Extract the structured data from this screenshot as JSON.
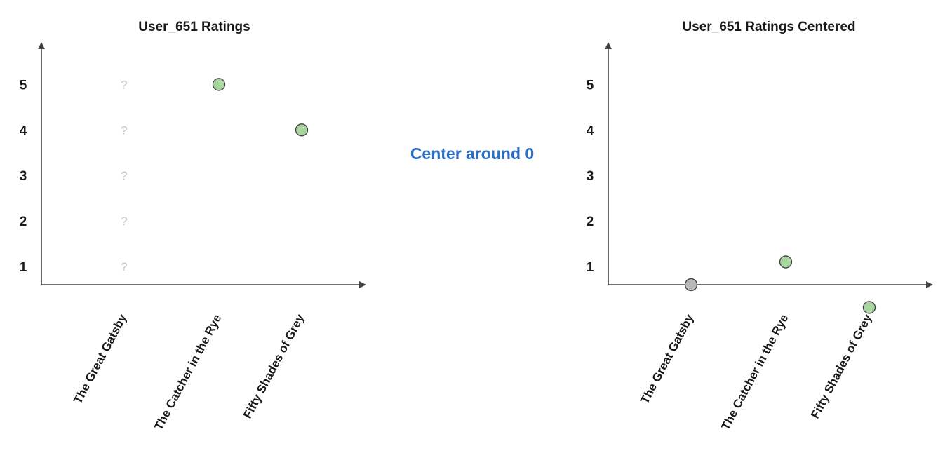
{
  "transform_label": "Center around 0",
  "colors": {
    "accent": "#2d6fc8",
    "point_fill": "#a8d5a0",
    "point_stroke": "#404040",
    "zero_point_fill": "#b8b8b8",
    "unknown_mark": "#c8c8c8",
    "axis": "#444444"
  },
  "chart_data": [
    {
      "type": "scatter",
      "title": "User_651 Ratings",
      "categories": [
        "The Great Gatsby",
        "The Catcher in the Rye",
        "Fifty Shades of Grey"
      ],
      "yticks": [
        "1",
        "2",
        "3",
        "4",
        "5"
      ],
      "ylim": [
        0.6,
        5.9
      ],
      "points": [
        {
          "category": "The Catcher in the Rye",
          "value": 5
        },
        {
          "category": "Fifty Shades of Grey",
          "value": 4
        }
      ],
      "unknown": {
        "category": "The Great Gatsby",
        "mark": "?",
        "values": [
          1,
          2,
          3,
          4,
          5
        ]
      }
    },
    {
      "type": "scatter",
      "title": "User_651 Ratings Centered",
      "categories": [
        "The Great Gatsby",
        "The Catcher in the Rye",
        "Fifty Shades of Grey"
      ],
      "yticks": [
        "1",
        "2",
        "3",
        "4",
        "5"
      ],
      "ylim": [
        0.6,
        5.9
      ],
      "points": [
        {
          "category": "The Great Gatsby",
          "value": 0.6,
          "zero": true
        },
        {
          "category": "The Catcher in the Rye",
          "value": 1.1
        },
        {
          "category": "Fifty Shades of Grey",
          "value": 0.1
        }
      ]
    }
  ]
}
